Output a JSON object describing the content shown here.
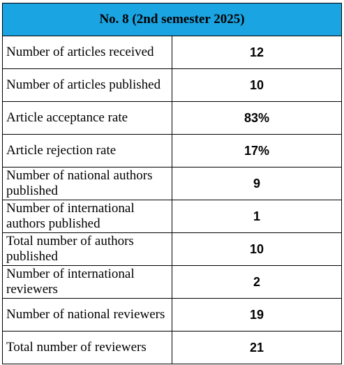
{
  "table": {
    "title": "No. 8 (2nd semester 2025)",
    "header_color": "#1ba4e2",
    "rows": [
      {
        "label": "Number of articles received",
        "value": "12"
      },
      {
        "label": "Number of articles published",
        "value": "10"
      },
      {
        "label": "Article acceptance rate",
        "value": "83%"
      },
      {
        "label": "Article rejection rate",
        "value": "17%"
      },
      {
        "label": "Number of national authors published",
        "value": "9"
      },
      {
        "label": "Number of international authors published",
        "value": "1"
      },
      {
        "label": "Total number of authors published",
        "value": "10"
      },
      {
        "label": "Number of international reviewers",
        "value": "2"
      },
      {
        "label": "Number of national reviewers",
        "value": "19"
      },
      {
        "label": "Total number of reviewers",
        "value": "21"
      }
    ]
  }
}
